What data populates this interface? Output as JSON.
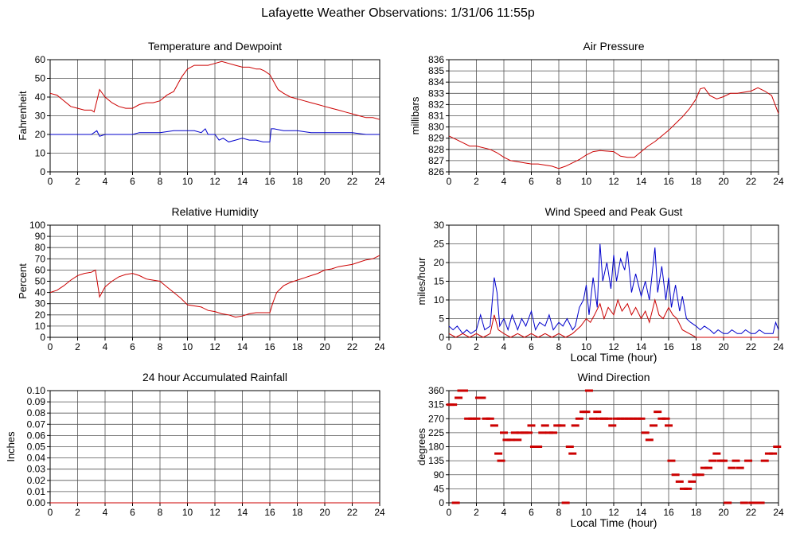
{
  "page": {
    "title": "Lafayette Weather Observations: 1/31/06 11:55p",
    "colors": {
      "red_series": "#cc0000",
      "blue_series": "#0000cc",
      "grid": "#555555",
      "frame": "#000000"
    }
  },
  "chart_data": [
    {
      "id": "temp",
      "type": "line",
      "title": "Temperature and Dewpoint",
      "xlabel": "",
      "ylabel": "Fahrenheit",
      "xlim": [
        0,
        24
      ],
      "ylim": [
        0,
        60
      ],
      "xticks": [
        0,
        2,
        4,
        6,
        8,
        10,
        12,
        14,
        16,
        18,
        20,
        22,
        24
      ],
      "yticks": [
        0,
        10,
        20,
        30,
        40,
        50,
        60
      ],
      "ytick_labels": [
        "0",
        "10",
        "20",
        "30",
        "40",
        "50",
        "60"
      ],
      "grid": true,
      "series": [
        {
          "color": "#cc0000",
          "x": [
            0,
            0.5,
            1,
            1.5,
            2,
            2.5,
            3,
            3.2,
            3.4,
            3.6,
            4,
            4.5,
            5,
            5.5,
            6,
            6.5,
            7,
            7.5,
            8,
            8.5,
            9,
            9.3,
            9.6,
            10,
            10.5,
            11,
            11.5,
            12,
            12.5,
            13,
            13.5,
            14,
            14.5,
            15,
            15.3,
            15.6,
            16,
            16.3,
            16.6,
            17,
            17.5,
            18,
            18.5,
            19,
            19.5,
            20,
            20.5,
            21,
            21.5,
            22,
            22.5,
            23,
            23.5,
            24
          ],
          "y": [
            42,
            41,
            38,
            35,
            34,
            33,
            33,
            32,
            38,
            44,
            40,
            37,
            35,
            34,
            34,
            36,
            37,
            37,
            38,
            41,
            43,
            47,
            51,
            55,
            57,
            57,
            57,
            58,
            59,
            58,
            57,
            56,
            56,
            55,
            55,
            54,
            52,
            48,
            44,
            42,
            40,
            39,
            38,
            37,
            36,
            35,
            34,
            33,
            32,
            31,
            30,
            29,
            29,
            28
          ]
        },
        {
          "color": "#0000cc",
          "x": [
            0,
            1,
            2,
            3,
            3.4,
            3.6,
            4,
            5,
            6,
            6.5,
            7,
            8,
            9,
            10,
            10.5,
            11,
            11.3,
            11.5,
            12,
            12.3,
            12.6,
            13,
            13.5,
            14,
            14.5,
            15,
            15.5,
            16,
            16.1,
            16.3,
            17,
            18,
            19,
            20,
            21,
            22,
            23,
            24
          ],
          "y": [
            20,
            20,
            20,
            20,
            22,
            19,
            20,
            20,
            20,
            21,
            21,
            21,
            22,
            22,
            22,
            21,
            23,
            20,
            20,
            17,
            18,
            16,
            17,
            18,
            17,
            17,
            16,
            16,
            23,
            23,
            22,
            22,
            21,
            21,
            21,
            21,
            20,
            20
          ]
        }
      ]
    },
    {
      "id": "pressure",
      "type": "line",
      "title": "Air Pressure",
      "xlabel": "",
      "ylabel": "millibars",
      "xlim": [
        0,
        24
      ],
      "ylim": [
        826,
        836
      ],
      "xticks": [
        0,
        2,
        4,
        6,
        8,
        10,
        12,
        14,
        16,
        18,
        20,
        22,
        24
      ],
      "yticks": [
        826,
        827,
        828,
        829,
        830,
        831,
        832,
        833,
        834,
        835,
        836
      ],
      "ytick_labels": [
        "826",
        "827",
        "828",
        "829",
        "830",
        "831",
        "832",
        "833",
        "834",
        "835",
        "836"
      ],
      "grid": true,
      "series": [
        {
          "color": "#cc0000",
          "x": [
            0,
            0.5,
            1,
            1.5,
            2,
            3,
            3.5,
            4,
            4.5,
            5,
            5.5,
            6,
            6.5,
            7,
            7.5,
            8,
            8.5,
            9,
            9.5,
            10,
            10.5,
            11,
            12,
            12.5,
            13,
            13.5,
            14,
            14.5,
            15,
            15.5,
            16,
            16.5,
            17,
            17.5,
            18,
            18.3,
            18.6,
            19,
            19.5,
            20,
            20.5,
            21,
            21.5,
            22,
            22.5,
            23,
            23.5,
            24
          ],
          "y": [
            829.2,
            828.9,
            828.6,
            828.3,
            828.3,
            828.0,
            827.7,
            827.3,
            827.0,
            826.9,
            826.8,
            826.7,
            826.7,
            826.6,
            826.5,
            826.3,
            826.5,
            826.8,
            827.1,
            827.5,
            827.8,
            827.9,
            827.8,
            827.4,
            827.3,
            827.3,
            827.8,
            828.3,
            828.7,
            829.2,
            829.7,
            830.3,
            830.9,
            831.6,
            832.5,
            833.4,
            833.5,
            832.8,
            832.5,
            832.7,
            833.0,
            833.0,
            833.1,
            833.2,
            833.5,
            833.2,
            832.8,
            831.2
          ]
        }
      ]
    },
    {
      "id": "humidity",
      "type": "line",
      "title": "Relative Humidity",
      "xlabel": "",
      "ylabel": "Percent",
      "xlim": [
        0,
        24
      ],
      "ylim": [
        0,
        100
      ],
      "xticks": [
        0,
        2,
        4,
        6,
        8,
        10,
        12,
        14,
        16,
        18,
        20,
        22,
        24
      ],
      "yticks": [
        0,
        10,
        20,
        30,
        40,
        50,
        60,
        70,
        80,
        90,
        100
      ],
      "ytick_labels": [
        "0",
        "10",
        "20",
        "30",
        "40",
        "50",
        "60",
        "70",
        "80",
        "90",
        "100"
      ],
      "grid": true,
      "series": [
        {
          "color": "#cc0000",
          "x": [
            0,
            0.5,
            1,
            1.5,
            2,
            2.5,
            3,
            3.3,
            3.6,
            4,
            4.5,
            5,
            5.5,
            6,
            6.5,
            7,
            7.5,
            8,
            8.5,
            9,
            9.5,
            10,
            10.5,
            11,
            11.5,
            12,
            12.5,
            13,
            13.5,
            14,
            14.5,
            15,
            15.5,
            16,
            16.2,
            16.5,
            17,
            17.5,
            18,
            18.5,
            19,
            19.5,
            20,
            20.5,
            21,
            21.5,
            22,
            22.5,
            23,
            23.5,
            24
          ],
          "y": [
            40,
            42,
            46,
            51,
            55,
            57,
            58,
            60,
            36,
            45,
            50,
            54,
            56,
            57,
            55,
            52,
            51,
            50,
            45,
            40,
            35,
            29,
            28,
            27,
            24,
            23,
            21,
            20,
            18,
            19,
            21,
            22,
            22,
            22,
            30,
            40,
            46,
            49,
            51,
            53,
            55,
            57,
            60,
            61,
            63,
            64,
            65,
            67,
            69,
            70,
            73
          ]
        }
      ]
    },
    {
      "id": "wind",
      "type": "line",
      "title": "Wind Speed and Peak Gust",
      "xlabel": "Local Time (hour)",
      "ylabel": "miles/hour",
      "xlim": [
        0,
        24
      ],
      "ylim": [
        0,
        30
      ],
      "xticks": [
        0,
        2,
        4,
        6,
        8,
        10,
        12,
        14,
        16,
        18,
        20,
        22,
        24
      ],
      "yticks": [
        0,
        5,
        10,
        15,
        20,
        25,
        30
      ],
      "ytick_labels": [
        "0",
        "5",
        "10",
        "15",
        "20",
        "25",
        "30"
      ],
      "grid": true,
      "series": [
        {
          "color": "#0000cc",
          "x": [
            0,
            0.3,
            0.6,
            1,
            1.3,
            1.6,
            2,
            2.3,
            2.6,
            3,
            3.3,
            3.5,
            3.7,
            4,
            4.3,
            4.6,
            5,
            5.3,
            5.6,
            6,
            6.3,
            6.6,
            7,
            7.3,
            7.6,
            8,
            8.3,
            8.6,
            9,
            9.2,
            9.5,
            9.8,
            10,
            10.2,
            10.5,
            10.8,
            11,
            11.2,
            11.5,
            11.8,
            12,
            12.2,
            12.5,
            12.8,
            13,
            13.3,
            13.6,
            14,
            14.3,
            14.6,
            15,
            15.2,
            15.5,
            15.8,
            16,
            16.2,
            16.5,
            16.8,
            17,
            17.3,
            17.6,
            18,
            18.3,
            18.6,
            19,
            19.3,
            19.6,
            20,
            20.3,
            20.6,
            21,
            21.3,
            21.6,
            22,
            22.3,
            22.6,
            23,
            23.3,
            23.6,
            23.8,
            24
          ],
          "y": [
            3,
            2,
            3,
            1,
            2,
            1,
            2,
            6,
            2,
            3,
            16,
            12,
            3,
            5,
            2,
            6,
            2,
            5,
            3,
            7,
            2,
            4,
            3,
            6,
            2,
            4,
            3,
            5,
            2,
            3,
            8,
            10,
            14,
            6,
            16,
            8,
            25,
            15,
            20,
            13,
            22,
            15,
            21,
            18,
            23,
            12,
            17,
            11,
            15,
            10,
            24,
            12,
            19,
            10,
            16,
            8,
            14,
            7,
            11,
            5,
            4,
            3,
            2,
            3,
            2,
            1,
            2,
            1,
            1,
            2,
            1,
            1,
            2,
            1,
            1,
            2,
            1,
            1,
            1,
            4,
            2
          ]
        },
        {
          "color": "#cc0000",
          "x": [
            0,
            0.5,
            1,
            1.5,
            2,
            2.5,
            3,
            3.3,
            3.6,
            4,
            4.5,
            5,
            5.5,
            6,
            6.5,
            7,
            7.5,
            8,
            8.5,
            9,
            9.3,
            9.6,
            10,
            10.3,
            10.6,
            11,
            11.3,
            11.6,
            12,
            12.3,
            12.6,
            13,
            13.3,
            13.6,
            14,
            14.3,
            14.6,
            15,
            15.3,
            15.6,
            16,
            16.3,
            16.6,
            17,
            17.5,
            18,
            19,
            20,
            21,
            22,
            23,
            24
          ],
          "y": [
            1,
            0,
            1,
            0,
            1,
            0,
            1,
            6,
            2,
            1,
            0,
            1,
            0,
            1,
            0,
            1,
            0,
            1,
            0,
            1,
            2,
            3,
            5,
            4,
            6,
            9,
            5,
            8,
            6,
            10,
            7,
            9,
            6,
            8,
            5,
            7,
            4,
            10,
            6,
            5,
            8,
            6,
            5,
            2,
            1,
            0,
            0,
            0,
            0,
            0,
            0,
            0
          ]
        }
      ]
    },
    {
      "id": "rain",
      "type": "line",
      "title": "24 hour Accumulated Rainfall",
      "xlabel": "",
      "ylabel": "Inches",
      "xlim": [
        0,
        24
      ],
      "ylim": [
        0,
        0.1
      ],
      "xticks": [
        0,
        2,
        4,
        6,
        8,
        10,
        12,
        14,
        16,
        18,
        20,
        22,
        24
      ],
      "yticks": [
        0,
        0.01,
        0.02,
        0.03,
        0.04,
        0.05,
        0.06,
        0.07,
        0.08,
        0.09,
        0.1
      ],
      "ytick_labels": [
        "0.00",
        "0.01",
        "0.02",
        "0.03",
        "0.04",
        "0.05",
        "0.06",
        "0.07",
        "0.08",
        "0.09",
        "0.10"
      ],
      "grid": true,
      "series": [
        {
          "color": "#cc0000",
          "x": [
            0,
            24
          ],
          "y": [
            0,
            0
          ]
        }
      ]
    },
    {
      "id": "direction",
      "type": "scatter",
      "title": "Wind Direction",
      "xlabel": "Local Time (hour)",
      "ylabel": "degrees",
      "xlim": [
        0,
        24
      ],
      "ylim": [
        0,
        360
      ],
      "xticks": [
        0,
        2,
        4,
        6,
        8,
        10,
        12,
        14,
        16,
        18,
        20,
        22,
        24
      ],
      "yticks": [
        0,
        45,
        90,
        135,
        180,
        225,
        270,
        315,
        360
      ],
      "ytick_labels": [
        "0",
        "45",
        "90",
        "135",
        "180",
        "225",
        "270",
        "315",
        "360"
      ],
      "grid": true,
      "series": [
        {
          "color": "#cc0000",
          "x": [
            0.1,
            0.3,
            0.5,
            0.7,
            0.9,
            1.1,
            1.4,
            1.7,
            2,
            2.2,
            2.4,
            2.7,
            3,
            3.3,
            3.6,
            3.8,
            4,
            4.2,
            4.5,
            4.8,
            5,
            5.2,
            5.5,
            5.8,
            6,
            6.2,
            6.5,
            6.8,
            7,
            7.3,
            7.6,
            7.9,
            8.2,
            8.5,
            8.8,
            9,
            9.2,
            9.5,
            9.8,
            10,
            10.2,
            10.5,
            10.8,
            11,
            11.3,
            11.6,
            11.9,
            12.2,
            12.5,
            12.8,
            13.1,
            13.4,
            13.7,
            14,
            14.3,
            14.6,
            14.9,
            15.2,
            15.5,
            15.8,
            16,
            16.2,
            16.5,
            16.8,
            17.1,
            17.4,
            17.7,
            18,
            18.3,
            18.6,
            18.9,
            19.2,
            19.5,
            19.8,
            20,
            20.3,
            20.6,
            20.9,
            21.2,
            21.5,
            21.8,
            22.1,
            22.4,
            22.7,
            23,
            23.3,
            23.6,
            23.9
          ],
          "y": [
            315,
            315,
            0,
            337,
            360,
            360,
            270,
            270,
            270,
            337,
            337,
            270,
            270,
            248,
            158,
            135,
            225,
            202,
            202,
            225,
            202,
            225,
            225,
            225,
            248,
            180,
            180,
            225,
            248,
            225,
            225,
            248,
            248,
            0,
            180,
            158,
            248,
            270,
            292,
            292,
            360,
            270,
            292,
            270,
            270,
            270,
            248,
            270,
            270,
            270,
            270,
            270,
            270,
            270,
            225,
            202,
            248,
            292,
            270,
            270,
            248,
            135,
            90,
            68,
            45,
            45,
            68,
            90,
            90,
            112,
            112,
            135,
            158,
            135,
            135,
            0,
            112,
            135,
            112,
            0,
            135,
            0,
            0,
            0,
            135,
            158,
            158,
            180
          ]
        }
      ]
    }
  ]
}
